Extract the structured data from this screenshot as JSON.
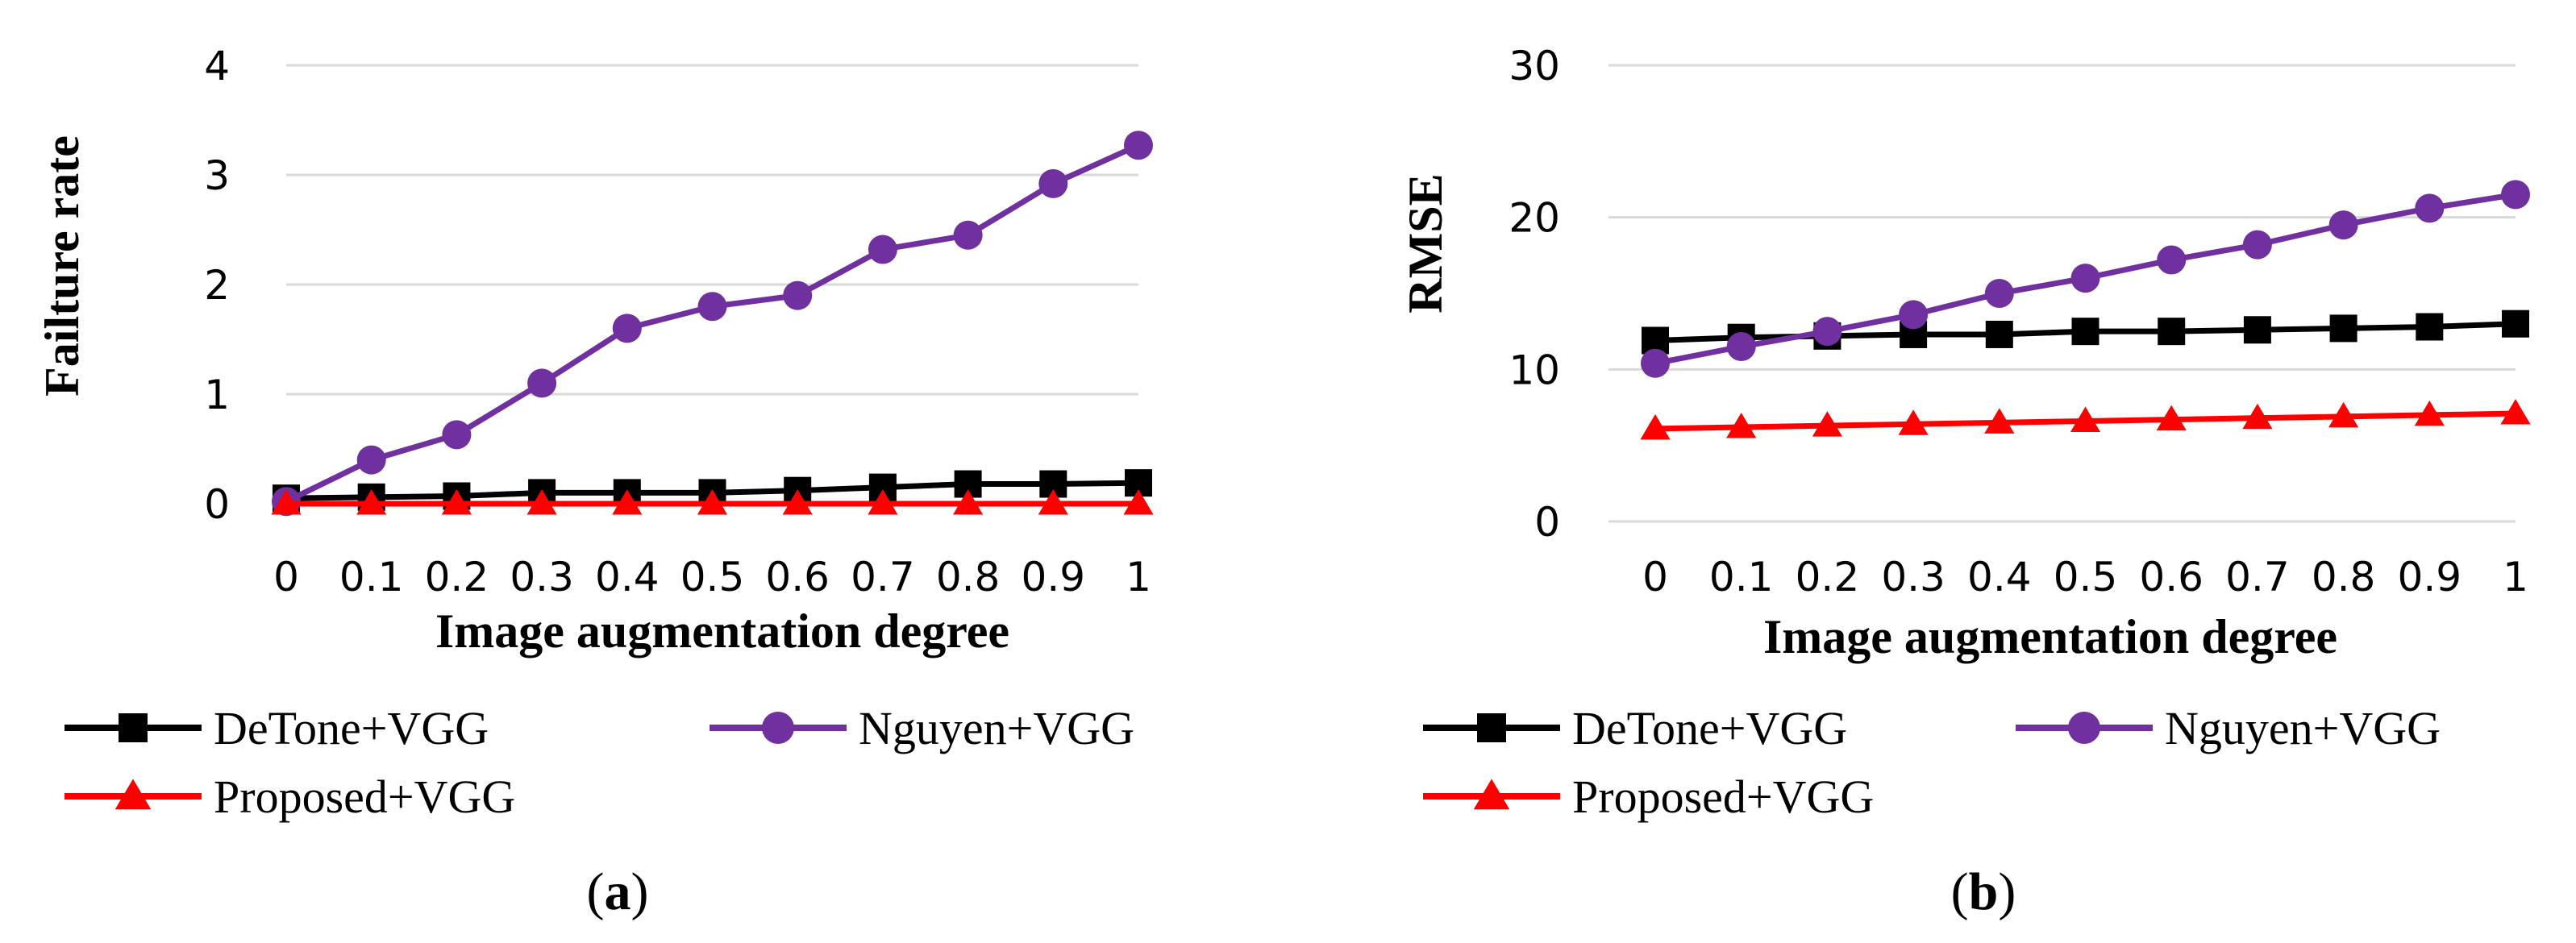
{
  "chart_data": [
    {
      "type": "line",
      "caption_letter": "a",
      "xlabel": "Image augmentation degree",
      "ylabel": "Failture rate",
      "x": [
        "0",
        "0.1",
        "0.2",
        "0.3",
        "0.4",
        "0.5",
        "0.6",
        "0.7",
        "0.8",
        "0.9",
        "1"
      ],
      "ylim": [
        0,
        4
      ],
      "yticks": [
        "0",
        "1",
        "2",
        "3",
        "4"
      ],
      "grid": true,
      "legend_position": "bottom",
      "series": [
        {
          "name": "DeTone+VGG",
          "color": "#000000",
          "marker": "square",
          "values": [
            0.05,
            0.06,
            0.07,
            0.1,
            0.1,
            0.1,
            0.12,
            0.15,
            0.18,
            0.18,
            0.19
          ]
        },
        {
          "name": "Nguyen+VGG",
          "color": "#7030a0",
          "marker": "circle",
          "values": [
            0.02,
            0.4,
            0.63,
            1.1,
            1.6,
            1.8,
            1.9,
            2.32,
            2.45,
            2.92,
            3.27
          ]
        },
        {
          "name": "Proposed+VGG",
          "color": "#ff0000",
          "marker": "triangle",
          "values": [
            0,
            0,
            0,
            0,
            0,
            0,
            0,
            0,
            0,
            0,
            0
          ]
        }
      ]
    },
    {
      "type": "line",
      "caption_letter": "b",
      "xlabel": "Image augmentation degree",
      "ylabel": "RMSE",
      "x": [
        "0",
        "0.1",
        "0.2",
        "0.3",
        "0.4",
        "0.5",
        "0.6",
        "0.7",
        "0.8",
        "0.9",
        "1"
      ],
      "ylim": [
        0,
        30
      ],
      "yticks": [
        "0",
        "10",
        "20",
        "30"
      ],
      "grid": true,
      "legend_position": "bottom",
      "series": [
        {
          "name": "DeTone+VGG",
          "color": "#000000",
          "marker": "square",
          "values": [
            11.9,
            12.1,
            12.2,
            12.3,
            12.3,
            12.5,
            12.5,
            12.6,
            12.7,
            12.8,
            13.0
          ]
        },
        {
          "name": "Nguyen+VGG",
          "color": "#7030a0",
          "marker": "circle",
          "values": [
            10.4,
            11.5,
            12.5,
            13.6,
            15.0,
            16.0,
            17.2,
            18.2,
            19.5,
            20.6,
            21.5
          ]
        },
        {
          "name": "Proposed+VGG",
          "color": "#ff0000",
          "marker": "triangle",
          "values": [
            6.1,
            6.2,
            6.3,
            6.4,
            6.5,
            6.6,
            6.7,
            6.8,
            6.9,
            7.0,
            7.1
          ]
        }
      ]
    }
  ]
}
